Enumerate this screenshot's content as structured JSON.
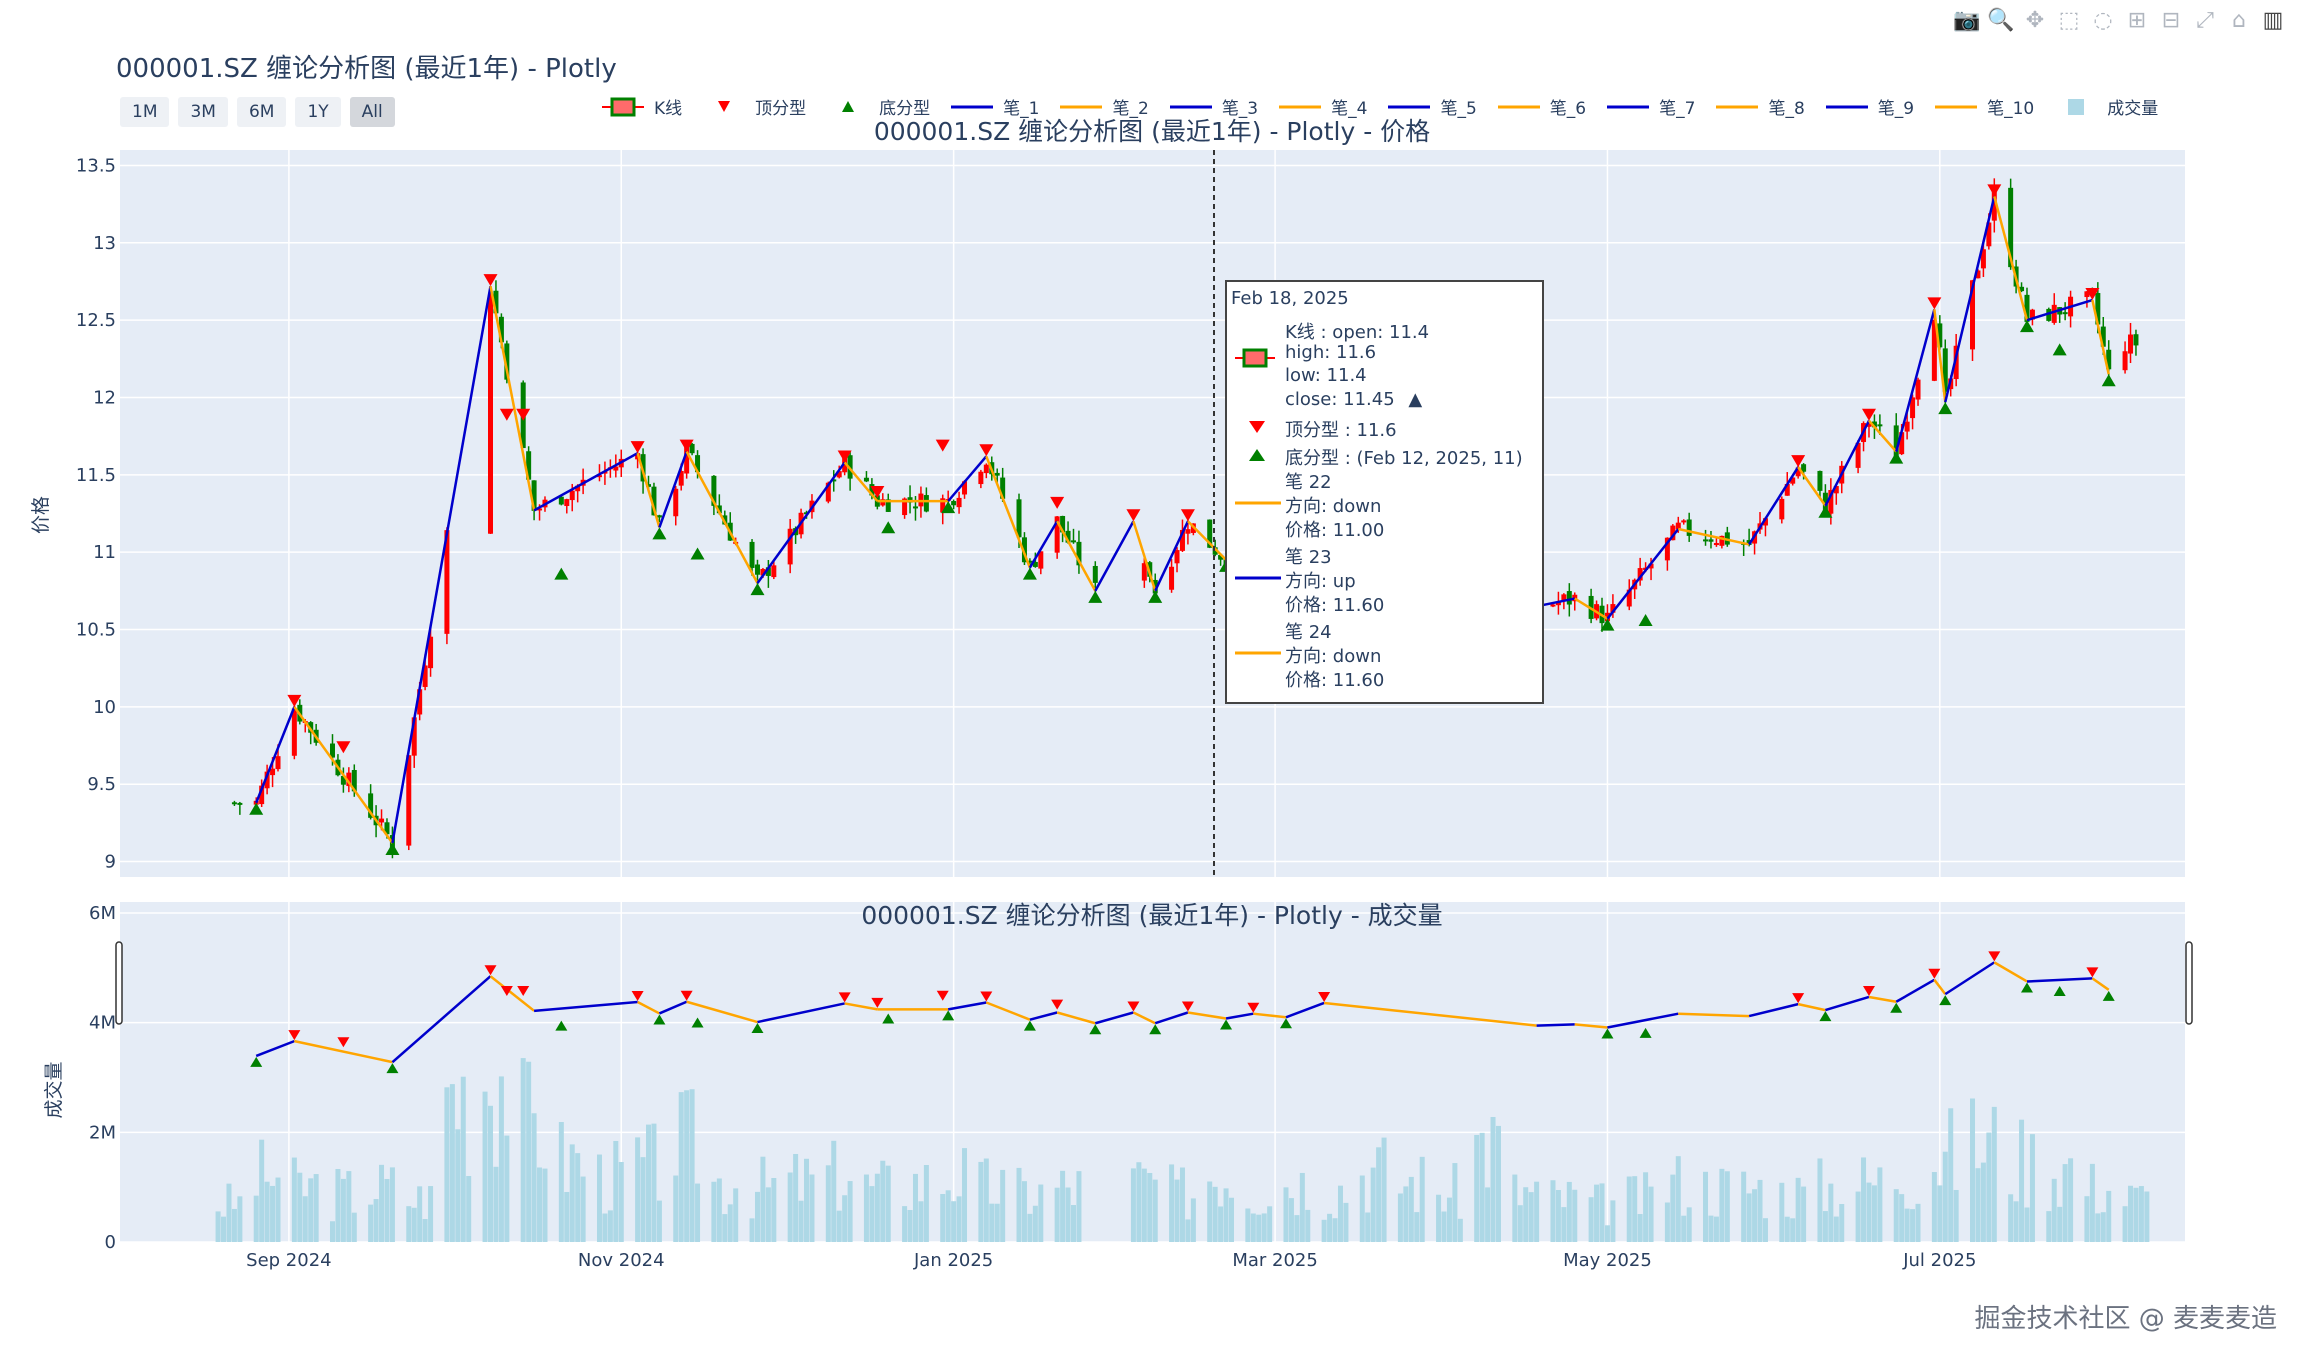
{
  "title": "000001.SZ 缠论分析图 (最近1年) - Plotly",
  "toolbar": {
    "icons": [
      "camera-icon",
      "zoom-icon",
      "pan-icon",
      "box-select-icon",
      "lasso-icon",
      "zoom-in-icon",
      "zoom-out-icon",
      "autoscale-icon",
      "reset-axes-icon",
      "plotly-logo-icon"
    ]
  },
  "range_buttons": [
    {
      "label": "1M",
      "active": false
    },
    {
      "label": "3M",
      "active": false
    },
    {
      "label": "6M",
      "active": false
    },
    {
      "label": "1Y",
      "active": false
    },
    {
      "label": "All",
      "active": true
    }
  ],
  "legend": [
    {
      "label": "K线",
      "kind": "candle"
    },
    {
      "label": "顶分型",
      "kind": "top"
    },
    {
      "label": "底分型",
      "kind": "bottom"
    },
    {
      "label": "笔_1",
      "kind": "line",
      "color": "#0000cc"
    },
    {
      "label": "笔_2",
      "kind": "line",
      "color": "#ffa500"
    },
    {
      "label": "笔_3",
      "kind": "line",
      "color": "#0000cc"
    },
    {
      "label": "笔_4",
      "kind": "line",
      "color": "#ffa500"
    },
    {
      "label": "笔_5",
      "kind": "line",
      "color": "#0000cc"
    },
    {
      "label": "笔_6",
      "kind": "line",
      "color": "#ffa500"
    },
    {
      "label": "笔_7",
      "kind": "line",
      "color": "#0000cc"
    },
    {
      "label": "笔_8",
      "kind": "line",
      "color": "#ffa500"
    },
    {
      "label": "笔_9",
      "kind": "line",
      "color": "#0000cc"
    },
    {
      "label": "笔_10",
      "kind": "line",
      "color": "#ffa500"
    },
    {
      "label": "成交量",
      "kind": "volume"
    }
  ],
  "colors": {
    "up": "#ff0000",
    "down": "#008000",
    "bi_up": "#0000cc",
    "bi_down": "#ffa500",
    "volume": "#add8e6",
    "plot_bg": "#e5ecf6"
  },
  "chart_data": [
    {
      "type": "candlestick",
      "title": "000001.SZ 缠论分析图 (最近1年) - Plotly - 价格",
      "ylabel": "价格",
      "ylim": [
        8.9,
        13.6
      ],
      "yticks": [
        "9",
        "9.5",
        "10",
        "10.5",
        "11",
        "11.5",
        "12",
        "12.5",
        "13",
        "13.5"
      ],
      "x_ticks": [
        "Sep 2024",
        "Nov 2024",
        "Jan 2025",
        "Mar 2025",
        "May 2025",
        "Jul 2025"
      ],
      "bi_points": [
        {
          "date": "2024-08-26",
          "price": 9.38
        },
        {
          "date": "2024-09-02",
          "price": 10.0
        },
        {
          "date": "2024-09-20",
          "price": 9.12
        },
        {
          "date": "2024-10-08",
          "price": 12.72
        },
        {
          "date": "2024-10-16",
          "price": 11.27
        },
        {
          "date": "2024-11-04",
          "price": 11.64
        },
        {
          "date": "2024-11-08",
          "price": 11.16
        },
        {
          "date": "2024-11-13",
          "price": 11.65
        },
        {
          "date": "2024-11-26",
          "price": 10.8
        },
        {
          "date": "2024-12-12",
          "price": 11.58
        },
        {
          "date": "2024-12-18",
          "price": 11.33
        },
        {
          "date": "2024-12-31",
          "price": 11.33
        },
        {
          "date": "2025-01-07",
          "price": 11.62
        },
        {
          "date": "2025-01-15",
          "price": 10.9
        },
        {
          "date": "2025-01-20",
          "price": 11.2
        },
        {
          "date": "2025-01-27",
          "price": 10.75
        },
        {
          "date": "2025-02-03",
          "price": 11.2
        },
        {
          "date": "2025-02-07",
          "price": 10.75
        },
        {
          "date": "2025-02-13",
          "price": 11.2
        },
        {
          "date": "2025-02-20",
          "price": 10.95
        },
        {
          "date": "2025-02-25",
          "price": 11.15
        },
        {
          "date": "2025-03-03",
          "price": 11.0
        },
        {
          "date": "2025-03-10",
          "price": 11.6
        },
        {
          "date": "2025-04-18",
          "price": 10.65
        },
        {
          "date": "2025-04-25",
          "price": 10.7
        },
        {
          "date": "2025-05-01",
          "price": 10.57
        },
        {
          "date": "2025-05-14",
          "price": 11.15
        },
        {
          "date": "2025-05-27",
          "price": 11.05
        },
        {
          "date": "2025-06-05",
          "price": 11.55
        },
        {
          "date": "2025-06-10",
          "price": 11.3
        },
        {
          "date": "2025-06-18",
          "price": 11.85
        },
        {
          "date": "2025-06-23",
          "price": 11.65
        },
        {
          "date": "2025-06-30",
          "price": 12.57
        },
        {
          "date": "2025-07-02",
          "price": 11.97
        },
        {
          "date": "2025-07-11",
          "price": 13.3
        },
        {
          "date": "2025-07-17",
          "price": 12.5
        },
        {
          "date": "2025-07-29",
          "price": 12.63
        },
        {
          "date": "2025-08-01",
          "price": 12.15
        }
      ],
      "top_fractals": [
        {
          "date": "2024-09-02",
          "price": 10.0
        },
        {
          "date": "2024-09-11",
          "price": 9.7
        },
        {
          "date": "2024-10-08",
          "price": 12.72
        },
        {
          "date": "2024-10-11",
          "price": 11.85
        },
        {
          "date": "2024-10-14",
          "price": 11.85
        },
        {
          "date": "2024-11-04",
          "price": 11.64
        },
        {
          "date": "2024-11-13",
          "price": 11.65
        },
        {
          "date": "2024-12-12",
          "price": 11.58
        },
        {
          "date": "2024-12-18",
          "price": 11.35
        },
        {
          "date": "2024-12-30",
          "price": 11.65
        },
        {
          "date": "2025-01-07",
          "price": 11.62
        },
        {
          "date": "2025-01-20",
          "price": 11.28
        },
        {
          "date": "2025-02-03",
          "price": 11.2
        },
        {
          "date": "2025-02-13",
          "price": 11.2
        },
        {
          "date": "2025-02-25",
          "price": 11.15
        },
        {
          "date": "2025-03-10",
          "price": 11.6
        },
        {
          "date": "2025-06-05",
          "price": 11.55
        },
        {
          "date": "2025-06-18",
          "price": 11.85
        },
        {
          "date": "2025-06-30",
          "price": 12.57
        },
        {
          "date": "2025-07-11",
          "price": 13.3
        },
        {
          "date": "2025-07-29",
          "price": 12.63
        }
      ],
      "bottom_fractals": [
        {
          "date": "2024-08-26",
          "price": 9.38
        },
        {
          "date": "2024-09-20",
          "price": 9.12
        },
        {
          "date": "2024-10-21",
          "price": 10.9
        },
        {
          "date": "2024-11-08",
          "price": 11.16
        },
        {
          "date": "2024-11-15",
          "price": 11.03
        },
        {
          "date": "2024-11-26",
          "price": 10.8
        },
        {
          "date": "2024-12-20",
          "price": 11.2
        },
        {
          "date": "2024-12-31",
          "price": 11.33
        },
        {
          "date": "2025-01-15",
          "price": 10.9
        },
        {
          "date": "2025-01-27",
          "price": 10.75
        },
        {
          "date": "2025-02-07",
          "price": 10.75
        },
        {
          "date": "2025-02-20",
          "price": 10.95
        },
        {
          "date": "2025-03-03",
          "price": 11.0
        },
        {
          "date": "2025-05-01",
          "price": 10.57
        },
        {
          "date": "2025-05-08",
          "price": 10.6
        },
        {
          "date": "2025-06-10",
          "price": 11.3
        },
        {
          "date": "2025-06-23",
          "price": 11.65
        },
        {
          "date": "2025-07-02",
          "price": 11.97
        },
        {
          "date": "2025-07-17",
          "price": 12.5
        },
        {
          "date": "2025-07-23",
          "price": 12.35
        },
        {
          "date": "2025-08-01",
          "price": 12.15
        }
      ],
      "hover": {
        "date": "Feb 18, 2025",
        "open": "K线 : open: 11.4",
        "high": "high: 11.6",
        "low": "low: 11.4",
        "close": "close: 11.45",
        "close_arrow": "▲",
        "top": "顶分型 : 11.6",
        "bottom": "底分型 : (Feb 12, 2025, 11)",
        "bi": [
          {
            "name": "笔 22",
            "dir": "方向: down",
            "price": "价格: 11.00",
            "color": "#ffa500"
          },
          {
            "name": "笔 23",
            "dir": "方向: up",
            "price": "价格: 11.60",
            "color": "#0000cc"
          },
          {
            "name": "笔 24",
            "dir": "方向: down",
            "price": "价格: 11.60",
            "color": "#ffa500"
          }
        ]
      }
    },
    {
      "type": "bar",
      "title": "000001.SZ 缠论分析图 (最近1年) - Plotly - 成交量",
      "ylabel": "成交量",
      "ylim": [
        0,
        6200000
      ],
      "yticks": [
        "0",
        "2M",
        "4M",
        "6M"
      ],
      "x_ticks": [
        "Sep 2024",
        "Nov 2024",
        "Jan 2025",
        "Mar 2025",
        "May 2025",
        "Jul 2025"
      ],
      "volume_weekly_avg": [
        {
          "week": "2024-08-19",
          "value": 700000
        },
        {
          "week": "2024-08-26",
          "value": 1200000
        },
        {
          "week": "2024-09-02",
          "value": 1000000
        },
        {
          "week": "2024-09-09",
          "value": 900000
        },
        {
          "week": "2024-09-16",
          "value": 1000000
        },
        {
          "week": "2024-09-23",
          "value": 800000
        },
        {
          "week": "2024-09-30",
          "value": 2800000
        },
        {
          "week": "2024-10-07",
          "value": 3200000
        },
        {
          "week": "2024-10-14",
          "value": 2200000
        },
        {
          "week": "2024-10-21",
          "value": 1500000
        },
        {
          "week": "2024-10-28",
          "value": 1200000
        },
        {
          "week": "2024-11-04",
          "value": 1400000
        },
        {
          "week": "2024-11-11",
          "value": 1800000
        },
        {
          "week": "2024-11-18",
          "value": 1100000
        },
        {
          "week": "2024-11-25",
          "value": 1000000
        },
        {
          "week": "2024-12-02",
          "value": 1100000
        },
        {
          "week": "2024-12-09",
          "value": 1200000
        },
        {
          "week": "2024-12-16",
          "value": 1000000
        },
        {
          "week": "2024-12-23",
          "value": 1100000
        },
        {
          "week": "2024-12-30",
          "value": 1200000
        },
        {
          "week": "2025-01-06",
          "value": 1000000
        },
        {
          "week": "2025-01-13",
          "value": 900000
        },
        {
          "week": "2025-01-20",
          "value": 1000000
        },
        {
          "week": "2025-02-03",
          "value": 1100000
        },
        {
          "week": "2025-02-10",
          "value": 900000
        },
        {
          "week": "2025-02-17",
          "value": 1300000
        },
        {
          "week": "2025-02-24",
          "value": 1000000
        },
        {
          "week": "2025-03-03",
          "value": 1100000
        },
        {
          "week": "2025-03-10",
          "value": 1000000
        },
        {
          "week": "2025-03-17",
          "value": 1300000
        },
        {
          "week": "2025-03-24",
          "value": 1100000
        },
        {
          "week": "2025-03-31",
          "value": 900000
        },
        {
          "week": "2025-04-07",
          "value": 1800000
        },
        {
          "week": "2025-04-14",
          "value": 900000
        },
        {
          "week": "2025-04-21",
          "value": 800000
        },
        {
          "week": "2025-04-28",
          "value": 700000
        },
        {
          "week": "2025-05-05",
          "value": 800000
        },
        {
          "week": "2025-05-12",
          "value": 1100000
        },
        {
          "week": "2025-05-19",
          "value": 1000000
        },
        {
          "week": "2025-05-26",
          "value": 1000000
        },
        {
          "week": "2025-06-02",
          "value": 900000
        },
        {
          "week": "2025-06-09",
          "value": 1000000
        },
        {
          "week": "2025-06-16",
          "value": 1100000
        },
        {
          "week": "2025-06-23",
          "value": 1300000
        },
        {
          "week": "2025-06-30",
          "value": 1600000
        },
        {
          "week": "2025-07-07",
          "value": 1800000
        },
        {
          "week": "2025-07-14",
          "value": 1500000
        },
        {
          "week": "2025-07-21",
          "value": 1400000
        },
        {
          "week": "2025-07-28",
          "value": 1000000
        },
        {
          "week": "2025-08-04",
          "value": 800000
        }
      ]
    }
  ],
  "watermark": "掘金技术社区 @ 麦麦麦造"
}
